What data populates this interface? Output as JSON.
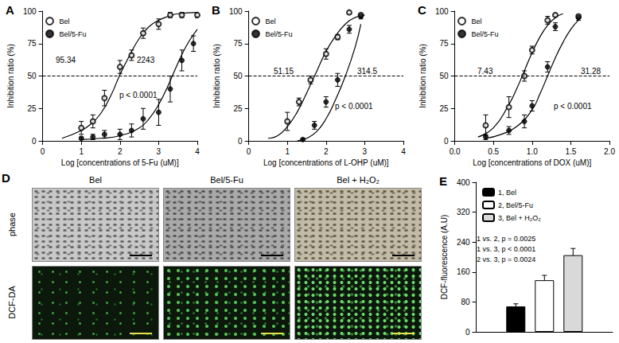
{
  "chart_data": [
    {
      "title": "A",
      "type": "scatter",
      "x_label": "Log [concentrations of 5-Fu (uM)]",
      "y_label": "Inhibition ratio (%)",
      "xlim": [
        0,
        4
      ],
      "xticks": [
        0,
        1,
        2,
        3,
        4
      ],
      "ylim": [
        0,
        100
      ],
      "yticks": [
        0,
        25,
        50,
        75,
        100
      ],
      "grid": false,
      "legend": "top-left",
      "hline": 50,
      "annotations": [
        "95.34",
        "2243",
        "p < 0.0001"
      ],
      "series": [
        {
          "name": "Bel",
          "marker": "open_circle",
          "color": "#000000",
          "x": [
            1.0,
            1.3,
            1.6,
            2.0,
            2.3,
            2.6,
            3.0,
            3.3,
            3.6,
            4.0
          ],
          "values": [
            10,
            15,
            33,
            57,
            66,
            83,
            90,
            97,
            97,
            97
          ],
          "errors": [
            5,
            5,
            6,
            5,
            4,
            4,
            4,
            2,
            2,
            2
          ],
          "fit_x": [
            0.5,
            1.0,
            1.25,
            1.5,
            1.75,
            2.0,
            2.25,
            2.5,
            2.75,
            3.0,
            3.25,
            3.5,
            4.0
          ],
          "fit_values": [
            2,
            8,
            13,
            21,
            34,
            51,
            66,
            79,
            88,
            93,
            96,
            98,
            99
          ]
        },
        {
          "name": "Bel/5-Fu",
          "marker": "filled_circle",
          "color": "#000000",
          "x": [
            1.0,
            1.3,
            1.6,
            2.0,
            2.3,
            2.6,
            3.0,
            3.3,
            3.6,
            3.9
          ],
          "values": [
            2,
            3,
            5,
            5,
            8,
            17,
            22,
            40,
            62,
            75
          ],
          "errors": [
            1,
            2,
            3,
            4,
            5,
            8,
            10,
            10,
            8,
            6
          ],
          "fit_x": [
            1.0,
            1.5,
            2.0,
            2.5,
            2.75,
            3.0,
            3.25,
            3.5,
            3.75,
            4.0
          ],
          "fit_values": [
            1,
            2,
            4,
            10,
            17,
            28,
            43,
            60,
            75,
            86
          ]
        }
      ]
    },
    {
      "title": "B",
      "type": "scatter",
      "x_label": "Log [concentrations of L-OHP (uM)]",
      "y_label": "Inhibition ratio (%)",
      "xlim": [
        0,
        4
      ],
      "xticks": [
        0,
        1,
        2,
        3,
        4
      ],
      "ylim": [
        0,
        100
      ],
      "yticks": [
        0,
        25,
        50,
        75,
        100
      ],
      "grid": false,
      "legend": "top-left",
      "hline": 50,
      "annotations": [
        "51.15",
        "314.5",
        "p < 0.0001"
      ],
      "series": [
        {
          "name": "Bel",
          "marker": "open_circle",
          "color": "#000000",
          "x": [
            1.0,
            1.3,
            1.6,
            2.0,
            2.3,
            2.6,
            2.9
          ],
          "values": [
            15,
            30,
            47,
            67,
            80,
            99,
            97
          ],
          "errors": [
            7,
            3,
            3,
            4,
            2,
            1,
            1
          ],
          "fit_x": [
            0.5,
            0.75,
            1.0,
            1.25,
            1.5,
            1.75,
            2.0,
            2.25,
            2.5,
            2.75,
            3.0
          ],
          "fit_values": [
            2,
            4,
            11,
            22,
            37,
            53,
            69,
            81,
            90,
            95,
            97
          ]
        },
        {
          "name": "Bel/5-Fu",
          "marker": "filled_circle",
          "color": "#000000",
          "x": [
            1.4,
            1.7,
            2.0,
            2.3,
            2.6,
            2.9
          ],
          "values": [
            1,
            12,
            30,
            47,
            86,
            96
          ],
          "errors": [
            1,
            3,
            4,
            5,
            3,
            2
          ],
          "fit_x": [
            1.25,
            1.5,
            1.75,
            2.0,
            2.25,
            2.5,
            2.75,
            2.9
          ],
          "fit_values": [
            0,
            2,
            7,
            17,
            32,
            50,
            72,
            90
          ]
        }
      ]
    },
    {
      "title": "C",
      "type": "scatter",
      "x_label": "Log [concentrations of DOX (uM)]",
      "y_label": "Inhibition ratio (%)",
      "xlim": [
        0,
        2
      ],
      "xticks": [
        {
          "value": 0,
          "label": "0.0"
        },
        0.5,
        {
          "value": 1,
          "label": "1.0"
        },
        1.5,
        {
          "value": 2,
          "label": "2.0"
        }
      ],
      "ylim": [
        0,
        100
      ],
      "yticks": [
        0,
        25,
        50,
        75,
        100
      ],
      "grid": false,
      "legend": "top-left",
      "hline": 50,
      "annotations": [
        "7.43",
        "31.28",
        "p < 0.0001"
      ],
      "series": [
        {
          "name": "Bel",
          "marker": "open_circle",
          "color": "#000000",
          "x": [
            0.4,
            0.7,
            0.9,
            1.0,
            1.2,
            1.3,
            1.6
          ],
          "values": [
            12,
            26,
            50,
            70,
            93,
            97,
            96
          ],
          "errors": [
            8,
            8,
            4,
            3,
            3,
            1,
            1
          ],
          "fit_x": [
            0.3,
            0.5,
            0.7,
            0.8,
            0.9,
            1.0,
            1.1,
            1.2,
            1.3,
            1.4
          ],
          "fit_values": [
            3,
            10,
            28,
            40,
            54,
            68,
            80,
            89,
            95,
            98
          ]
        },
        {
          "name": "Bel/5-Fu",
          "marker": "filled_circle",
          "color": "#000000",
          "x": [
            0.4,
            0.7,
            0.9,
            1.0,
            1.2,
            1.3,
            1.6
          ],
          "values": [
            3,
            8,
            15,
            27,
            57,
            88,
            95
          ],
          "errors": [
            2,
            3,
            5,
            4,
            4,
            3,
            2
          ],
          "fit_x": [
            0.4,
            0.6,
            0.8,
            1.0,
            1.1,
            1.2,
            1.3,
            1.4,
            1.5,
            1.6
          ],
          "fit_values": [
            2,
            5,
            11,
            24,
            36,
            50,
            64,
            76,
            86,
            93
          ]
        }
      ]
    },
    {
      "title": "E",
      "type": "bar",
      "y_label": "DCF-fluorescence (A.U)",
      "ylim": [
        0,
        400
      ],
      "yticks": [
        0,
        80,
        160,
        240,
        320,
        400
      ],
      "categories": [
        null
      ],
      "tick_labels": "y",
      "grid": false,
      "legend": "top-left",
      "annotations": [
        "1 vs. 2, p = 0.0025",
        "1 vs. 3, p < 0.0001",
        "2 vs. 3, p = 0.0024"
      ],
      "series": [
        {
          "name": "1, Bel",
          "color": "#000000",
          "values": [
            68
          ],
          "errors": [
            7
          ]
        },
        {
          "name": "2, Bel/5-Fu",
          "color": "#ffffff",
          "values": [
            138
          ],
          "errors": [
            13
          ]
        },
        {
          "name": "3, Bel + H₂O₂",
          "color": "#d9d9d9",
          "values": [
            205
          ],
          "errors": [
            18
          ]
        }
      ]
    }
  ],
  "panel_D": {
    "label": "D",
    "columns": [
      "Bel",
      "Bel/5-Fu",
      "Bel + H₂O₂"
    ],
    "rows": [
      "phase",
      "DCF-DA"
    ]
  }
}
